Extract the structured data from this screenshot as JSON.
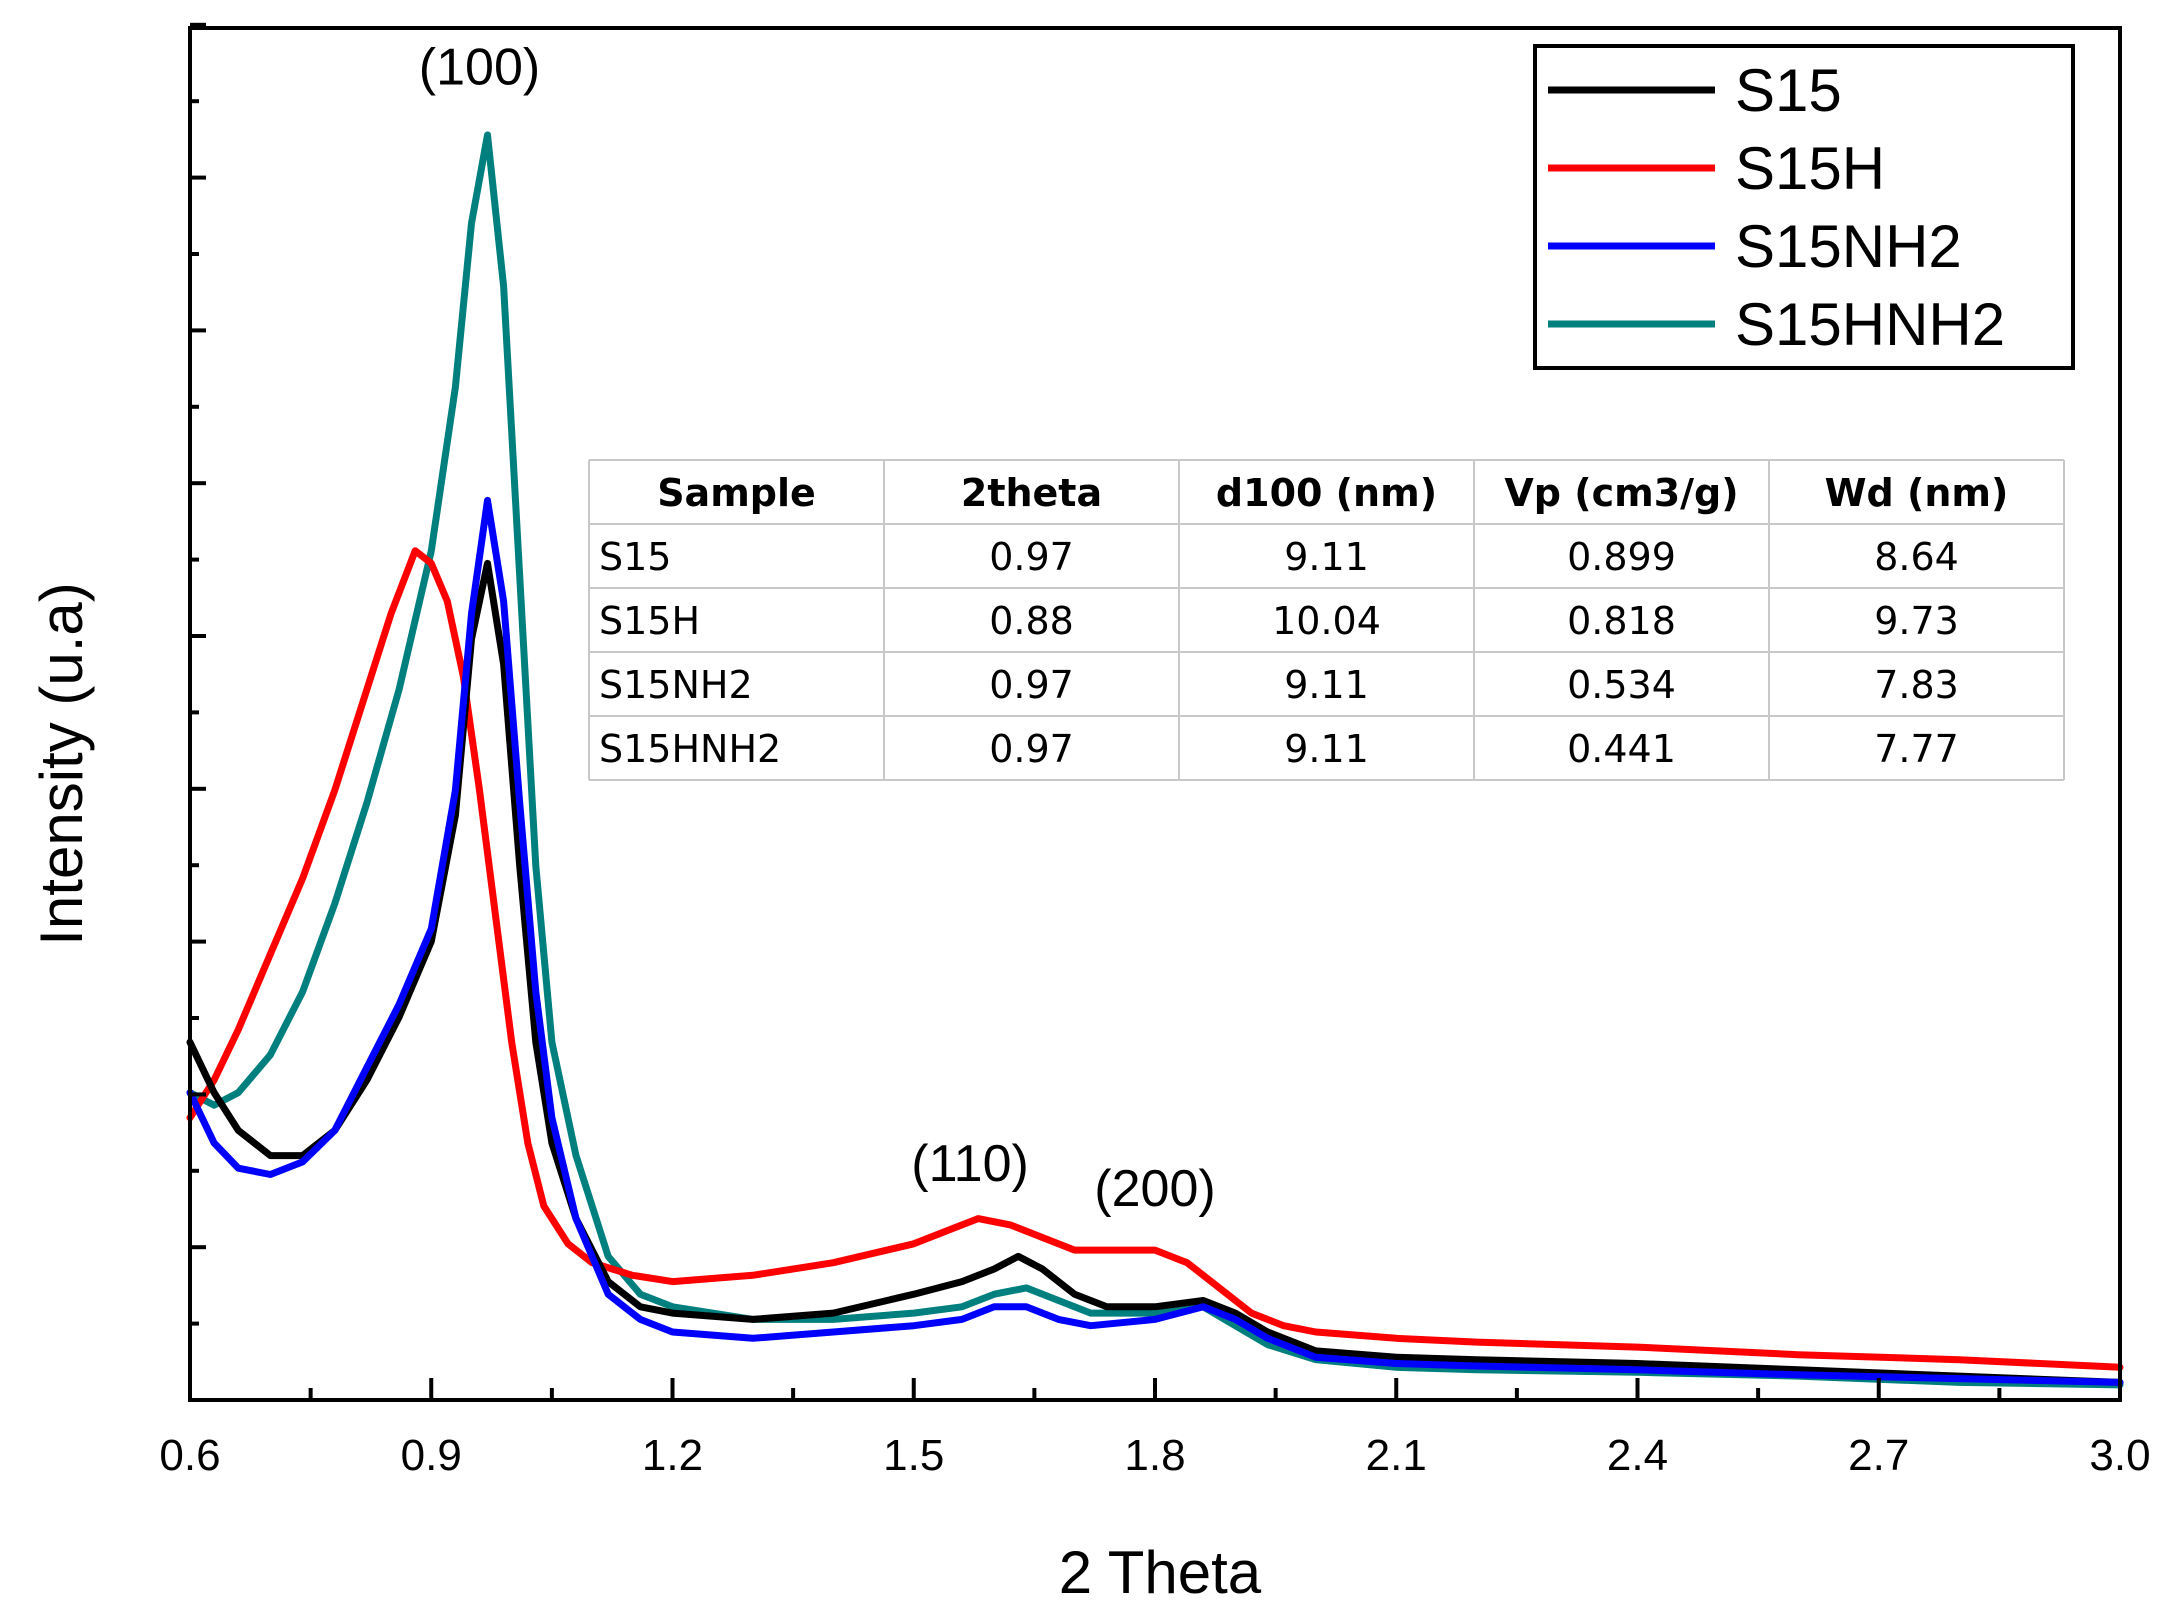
{
  "chart_data": {
    "type": "line",
    "xlabel": "2 Theta",
    "ylabel": "Intensity (u.a)",
    "xlim": [
      0.6,
      3.0
    ],
    "ylim": [
      0,
      100
    ],
    "x_ticks": [
      "0.6",
      "0.9",
      "1.2",
      "1.5",
      "1.8",
      "2.1",
      "2.4",
      "2.7",
      "3.0"
    ],
    "y_tick_labels_shown": false,
    "grid": false,
    "legend_position": "top-right",
    "series": [
      {
        "name": "S15",
        "color": "#000000",
        "points": [
          [
            0.6,
            28
          ],
          [
            0.63,
            24
          ],
          [
            0.66,
            21
          ],
          [
            0.7,
            19
          ],
          [
            0.74,
            19
          ],
          [
            0.78,
            21
          ],
          [
            0.82,
            25
          ],
          [
            0.86,
            30
          ],
          [
            0.9,
            36
          ],
          [
            0.93,
            46
          ],
          [
            0.95,
            60
          ],
          [
            0.97,
            66
          ],
          [
            0.99,
            58
          ],
          [
            1.01,
            42
          ],
          [
            1.03,
            28
          ],
          [
            1.05,
            20
          ],
          [
            1.08,
            14
          ],
          [
            1.12,
            9
          ],
          [
            1.16,
            7
          ],
          [
            1.2,
            6.5
          ],
          [
            1.3,
            6
          ],
          [
            1.4,
            6.5
          ],
          [
            1.5,
            8
          ],
          [
            1.56,
            9
          ],
          [
            1.6,
            10
          ],
          [
            1.63,
            11
          ],
          [
            1.66,
            10
          ],
          [
            1.7,
            8
          ],
          [
            1.74,
            7
          ],
          [
            1.8,
            7
          ],
          [
            1.86,
            7.5
          ],
          [
            1.9,
            6.5
          ],
          [
            1.94,
            5
          ],
          [
            2.0,
            3.5
          ],
          [
            2.1,
            3
          ],
          [
            2.2,
            2.8
          ],
          [
            2.4,
            2.5
          ],
          [
            2.6,
            2
          ],
          [
            2.8,
            1.5
          ],
          [
            3.0,
            1
          ]
        ]
      },
      {
        "name": "S15H",
        "color": "#ff0000",
        "points": [
          [
            0.6,
            22
          ],
          [
            0.63,
            25
          ],
          [
            0.66,
            29
          ],
          [
            0.7,
            35
          ],
          [
            0.74,
            41
          ],
          [
            0.78,
            48
          ],
          [
            0.82,
            56
          ],
          [
            0.85,
            62
          ],
          [
            0.88,
            67
          ],
          [
            0.9,
            66
          ],
          [
            0.92,
            63
          ],
          [
            0.94,
            57
          ],
          [
            0.96,
            48
          ],
          [
            0.98,
            38
          ],
          [
            1.0,
            28
          ],
          [
            1.02,
            20
          ],
          [
            1.04,
            15
          ],
          [
            1.07,
            12
          ],
          [
            1.1,
            10.5
          ],
          [
            1.15,
            9.5
          ],
          [
            1.2,
            9
          ],
          [
            1.3,
            9.5
          ],
          [
            1.4,
            10.5
          ],
          [
            1.5,
            12
          ],
          [
            1.56,
            13.5
          ],
          [
            1.58,
            14
          ],
          [
            1.62,
            13.5
          ],
          [
            1.66,
            12.5
          ],
          [
            1.7,
            11.5
          ],
          [
            1.76,
            11.5
          ],
          [
            1.8,
            11.5
          ],
          [
            1.84,
            10.5
          ],
          [
            1.88,
            8.5
          ],
          [
            1.92,
            6.5
          ],
          [
            1.96,
            5.5
          ],
          [
            2.0,
            5
          ],
          [
            2.1,
            4.5
          ],
          [
            2.2,
            4.2
          ],
          [
            2.4,
            3.8
          ],
          [
            2.6,
            3.2
          ],
          [
            2.8,
            2.8
          ],
          [
            3.0,
            2.2
          ]
        ]
      },
      {
        "name": "S15NH2",
        "color": "#0000ff",
        "points": [
          [
            0.6,
            24
          ],
          [
            0.63,
            20
          ],
          [
            0.66,
            18
          ],
          [
            0.7,
            17.5
          ],
          [
            0.74,
            18.5
          ],
          [
            0.78,
            21
          ],
          [
            0.82,
            26
          ],
          [
            0.86,
            31
          ],
          [
            0.9,
            37
          ],
          [
            0.93,
            48
          ],
          [
            0.95,
            62
          ],
          [
            0.97,
            71
          ],
          [
            0.99,
            63
          ],
          [
            1.01,
            47
          ],
          [
            1.03,
            32
          ],
          [
            1.05,
            22
          ],
          [
            1.08,
            14
          ],
          [
            1.12,
            8
          ],
          [
            1.16,
            6
          ],
          [
            1.2,
            5
          ],
          [
            1.3,
            4.5
          ],
          [
            1.4,
            5
          ],
          [
            1.5,
            5.5
          ],
          [
            1.56,
            6
          ],
          [
            1.6,
            7
          ],
          [
            1.64,
            7
          ],
          [
            1.68,
            6
          ],
          [
            1.72,
            5.5
          ],
          [
            1.8,
            6
          ],
          [
            1.86,
            7
          ],
          [
            1.9,
            6
          ],
          [
            1.94,
            4.5
          ],
          [
            2.0,
            3
          ],
          [
            2.1,
            2.5
          ],
          [
            2.2,
            2.3
          ],
          [
            2.4,
            2
          ],
          [
            2.6,
            1.6
          ],
          [
            2.8,
            1.3
          ],
          [
            3.0,
            1
          ]
        ]
      },
      {
        "name": "S15HNH2",
        "color": "#007f7f",
        "points": [
          [
            0.6,
            24
          ],
          [
            0.63,
            23
          ],
          [
            0.66,
            24
          ],
          [
            0.7,
            27
          ],
          [
            0.74,
            32
          ],
          [
            0.78,
            39
          ],
          [
            0.82,
            47
          ],
          [
            0.86,
            56
          ],
          [
            0.9,
            67
          ],
          [
            0.93,
            80
          ],
          [
            0.95,
            93
          ],
          [
            0.97,
            100
          ],
          [
            0.99,
            88
          ],
          [
            1.01,
            65
          ],
          [
            1.03,
            42
          ],
          [
            1.05,
            28
          ],
          [
            1.08,
            19
          ],
          [
            1.12,
            11
          ],
          [
            1.16,
            8
          ],
          [
            1.2,
            7
          ],
          [
            1.3,
            6
          ],
          [
            1.4,
            6
          ],
          [
            1.5,
            6.5
          ],
          [
            1.56,
            7
          ],
          [
            1.6,
            8
          ],
          [
            1.64,
            8.5
          ],
          [
            1.68,
            7.5
          ],
          [
            1.72,
            6.5
          ],
          [
            1.8,
            6.5
          ],
          [
            1.86,
            7
          ],
          [
            1.9,
            5.5
          ],
          [
            1.94,
            4
          ],
          [
            2.0,
            2.8
          ],
          [
            2.1,
            2.2
          ],
          [
            2.2,
            2
          ],
          [
            2.4,
            1.8
          ],
          [
            2.6,
            1.5
          ],
          [
            2.8,
            1
          ],
          [
            3.0,
            0.8
          ]
        ]
      }
    ],
    "annotations": [
      {
        "text": "(100)",
        "x": 0.96,
        "y": 104
      },
      {
        "text": "(110)",
        "x": 1.57,
        "y": 17
      },
      {
        "text": "(200)",
        "x": 1.8,
        "y": 15
      }
    ]
  },
  "table": {
    "headers": [
      "Sample",
      "2theta",
      "d100 (nm)",
      "Vp (cm3/g)",
      "Wd (nm)"
    ],
    "rows": [
      [
        "S15",
        "0.97",
        "9.11",
        "0.899",
        "8.64"
      ],
      [
        "S15H",
        "0.88",
        "10.04",
        "0.818",
        "9.73"
      ],
      [
        "S15NH2",
        "0.97",
        "9.11",
        "0.534",
        "7.83"
      ],
      [
        "S15HNH2",
        "0.97",
        "9.11",
        "0.441",
        "7.77"
      ]
    ]
  }
}
